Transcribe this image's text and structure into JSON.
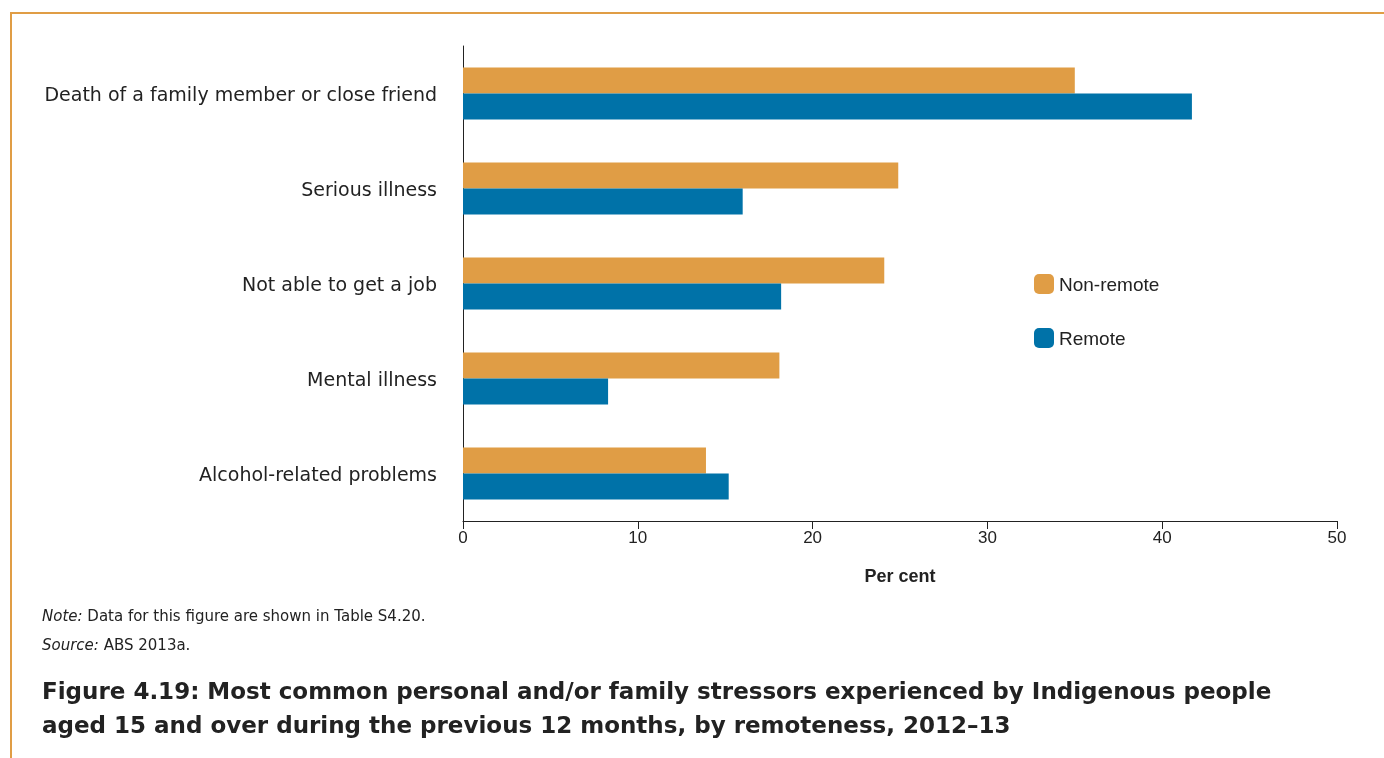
{
  "chart_data": {
    "type": "bar",
    "orientation": "horizontal",
    "title": "Figure 4.19: Most common personal and/or family stressors experienced by Indigenous people aged 15 and over during the previous 12 months, by remoteness, 2012–13",
    "xlabel": "Per cent",
    "categories": [
      "Death of a family member or close friend",
      "Serious illness",
      "Not able to get a job",
      "Mental illness",
      "Alcohol-related problems"
    ],
    "series": [
      {
        "name": "Non-remote",
        "color": "#e09d45",
        "values": [
          35.0,
          24.9,
          24.1,
          18.1,
          13.9
        ]
      },
      {
        "name": "Remote",
        "color": "#0072a8",
        "values": [
          41.7,
          16.0,
          18.2,
          8.3,
          15.2
        ]
      }
    ],
    "xlim": [
      0,
      50
    ],
    "xticks": [
      0,
      10,
      20,
      30,
      40,
      50
    ],
    "grid": false,
    "legend": "right",
    "annotations": [
      "Note: Data for this figure are shown in Table S4.20.",
      "Source: ABS 2013a."
    ]
  }
}
